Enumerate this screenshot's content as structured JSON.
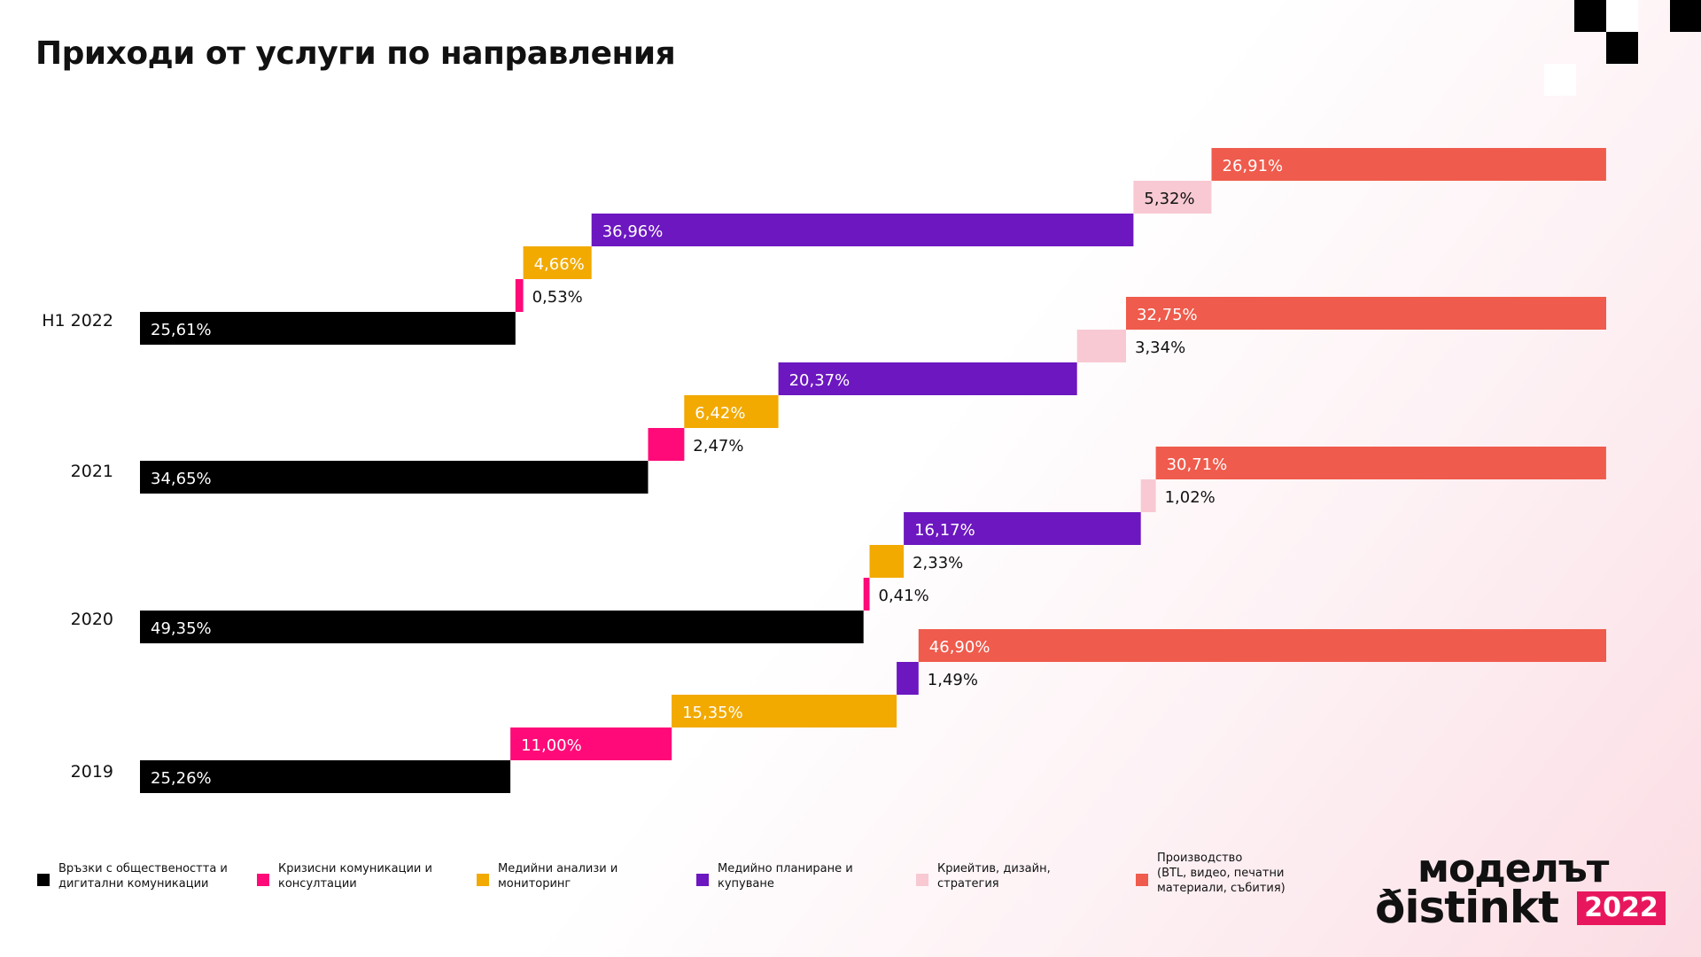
{
  "title": "Приходи от услуги по направления",
  "colors": {
    "black": "#000000",
    "pink": "#ff0a78",
    "orange": "#f2a900",
    "purple": "#6c17c0",
    "light_pink": "#f8c9d3",
    "coral": "#ef5b4c"
  },
  "chart_data": {
    "type": "bar",
    "subtype": "stacked-horizontal-staggered",
    "title": "Приходи от услуги по направления",
    "xlabel": "",
    "ylabel": "",
    "xlim": [
      0,
      100
    ],
    "grid": false,
    "legend_position": "bottom",
    "categories": [
      "H1 2022",
      "2021",
      "2020",
      "2019"
    ],
    "series": [
      {
        "name": "Връзки с обществеността и\nдигитални комуникации",
        "color": "#000000",
        "values": [
          25.61,
          34.65,
          49.35,
          25.26
        ],
        "labels": [
          "25,61%",
          "34,65%",
          "49,35%",
          "25,26%"
        ]
      },
      {
        "name": "Кризисни комуникации и\nконсултации",
        "color": "#ff0a78",
        "values": [
          0.53,
          2.47,
          0.41,
          11.0
        ],
        "labels": [
          "0,53%",
          "2,47%",
          "0,41%",
          "11,00%"
        ]
      },
      {
        "name": "Медийни анализи и\nмониторинг",
        "color": "#f2a900",
        "values": [
          4.66,
          6.42,
          2.33,
          15.35
        ],
        "labels": [
          "4,66%",
          "6,42%",
          "2,33%",
          "15,35%"
        ]
      },
      {
        "name": "Медийно планиране и\nкупуване",
        "color": "#6c17c0",
        "values": [
          36.96,
          20.37,
          16.17,
          1.49
        ],
        "labels": [
          "36,96%",
          "20,37%",
          "16,17%",
          "1,49%"
        ]
      },
      {
        "name": "Криейтив, дизайн,\nстратегия",
        "color": "#f8c9d3",
        "values": [
          5.32,
          3.34,
          1.02,
          0
        ],
        "labels": [
          "5,32%",
          "3,34%",
          "1,02%",
          ""
        ]
      },
      {
        "name": "Производство\n(BTL, видео, печатни\nматериали, събития)",
        "color": "#ef5b4c",
        "values": [
          26.91,
          32.75,
          30.71,
          46.9
        ],
        "labels": [
          "26,91%",
          "32,75%",
          "30,71%",
          "46,90%"
        ]
      }
    ]
  },
  "logo": {
    "line1": "моделът",
    "line2": "ðistinkt",
    "year": "2022"
  }
}
